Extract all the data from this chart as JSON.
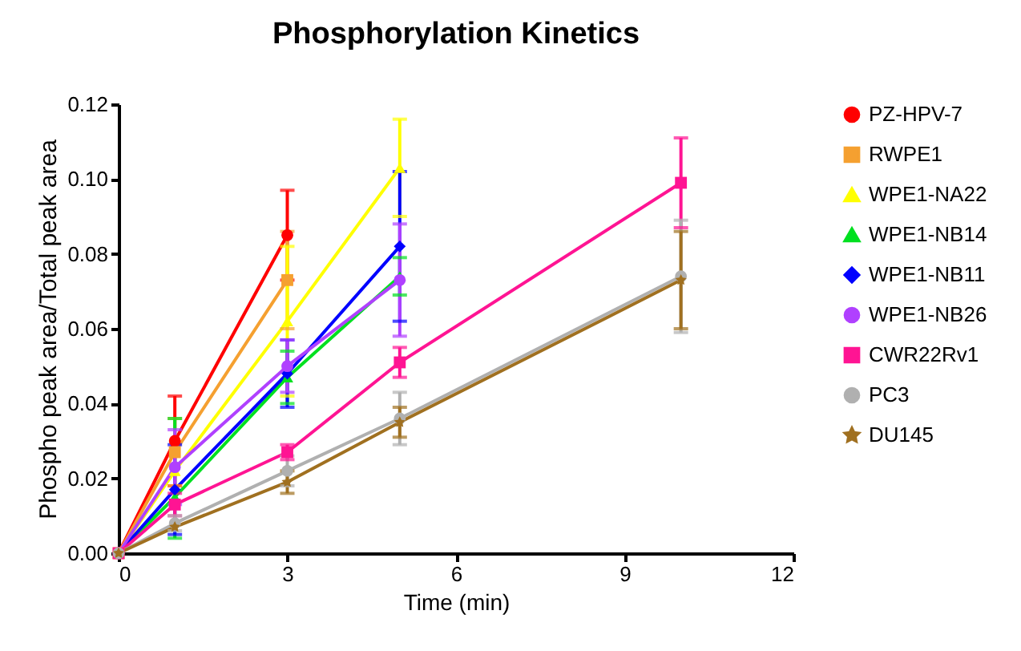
{
  "chart_data": {
    "type": "line",
    "title": "Phosphorylation Kinetics",
    "xlabel": "Time (min)",
    "ylabel": "Phospho peak area/Total peak area",
    "xlim": [
      0,
      12
    ],
    "xticks": [
      0,
      3,
      6,
      9,
      12
    ],
    "ylim": [
      0,
      0.12
    ],
    "yticks": [
      {
        "value": 0,
        "label": "0.00"
      },
      {
        "value": 0.02,
        "label": "0.02"
      },
      {
        "value": 0.04,
        "label": "0.04"
      },
      {
        "value": 0.06,
        "label": "0.06"
      },
      {
        "value": 0.08,
        "label": "0.08"
      },
      {
        "value": 0.1,
        "label": "0.10"
      },
      {
        "value": 0.12,
        "label": "0.12"
      }
    ],
    "grid": false,
    "legend": "right",
    "series": [
      {
        "name": "PZ-HPV-7",
        "color": "#ff0000",
        "marker": "circle",
        "x": [
          0,
          1,
          3
        ],
        "values": [
          0,
          0.03,
          0.085
        ],
        "errors": [
          null,
          0.012,
          0.012
        ]
      },
      {
        "name": "RWPE1",
        "color": "#f5a030",
        "marker": "square",
        "x": [
          0,
          1,
          3
        ],
        "values": [
          0,
          0.027,
          0.073
        ],
        "errors": [
          null,
          0.009,
          0.013
        ]
      },
      {
        "name": "WPE1-NA22",
        "color": "#ffff00",
        "marker": "triangle",
        "x": [
          0,
          1,
          3,
          5
        ],
        "values": [
          0,
          0.022,
          0.062,
          0.103
        ],
        "errors": [
          null,
          null,
          0.02,
          0.013
        ]
      },
      {
        "name": "WPE1-NB14",
        "color": "#00e020",
        "marker": "triangle",
        "x": [
          0,
          1,
          3,
          5
        ],
        "values": [
          0,
          0.015,
          0.047,
          0.074
        ],
        "errors": [
          null,
          [
            0.004,
            0.036
          ],
          0.007,
          0.005
        ]
      },
      {
        "name": "WPE1-NB11",
        "color": "#0000ff",
        "marker": "diamond",
        "x": [
          0,
          1,
          3,
          5
        ],
        "values": [
          0,
          0.017,
          0.048,
          0.082
        ],
        "errors": [
          null,
          0.012,
          0.009,
          0.02
        ]
      },
      {
        "name": "WPE1-NB26",
        "color": "#b040ff",
        "marker": "circle",
        "x": [
          0,
          1,
          3,
          5
        ],
        "values": [
          0,
          0.023,
          0.05,
          0.073
        ],
        "errors": [
          null,
          0.01,
          0.007,
          0.015
        ]
      },
      {
        "name": "CWR22Rv1",
        "color": "#ff1493",
        "marker": "square",
        "x": [
          0,
          1,
          3,
          5,
          10
        ],
        "values": [
          0,
          0.013,
          0.027,
          0.051,
          0.099
        ],
        "errors": [
          null,
          0.003,
          0.002,
          0.004,
          0.012
        ]
      },
      {
        "name": "PC3",
        "color": "#b0b0b0",
        "marker": "circle",
        "x": [
          0,
          1,
          3,
          5,
          10
        ],
        "values": [
          0,
          0.008,
          0.022,
          0.036,
          0.074
        ],
        "errors": [
          null,
          0.002,
          0.004,
          0.007,
          0.015
        ]
      },
      {
        "name": "DU145",
        "color": "#a07020",
        "marker": "star",
        "x": [
          0,
          1,
          3,
          5,
          10
        ],
        "values": [
          0,
          0.007,
          0.019,
          0.035,
          0.073
        ],
        "errors": [
          null,
          null,
          0.003,
          0.004,
          0.013
        ]
      }
    ]
  }
}
